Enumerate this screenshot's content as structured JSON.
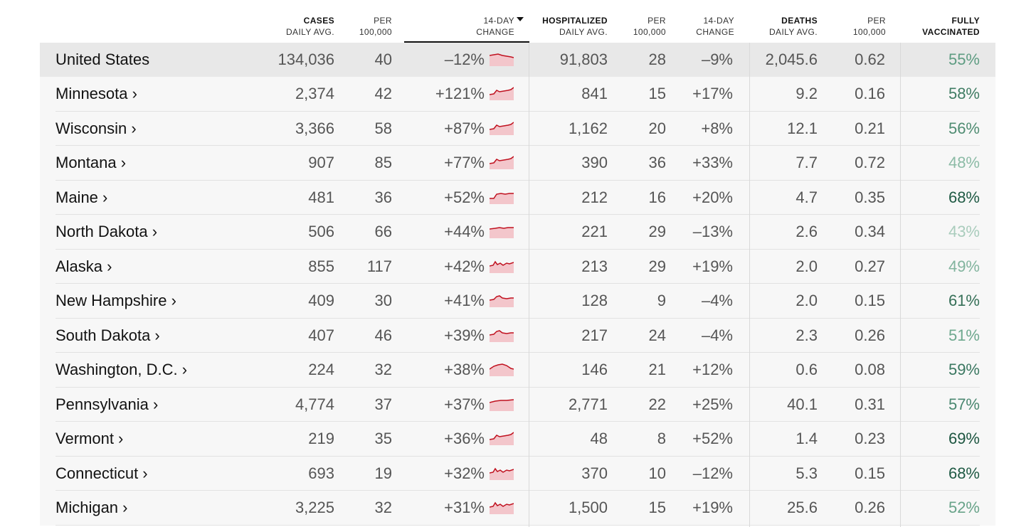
{
  "headers": {
    "cases": {
      "top": "CASES",
      "bottom": "DAILY AVG."
    },
    "cases_per": {
      "top": "PER",
      "bottom": "100,000"
    },
    "cases_change": {
      "top": "14-DAY",
      "bottom": "CHANGE"
    },
    "hosp": {
      "top": "HOSPITALIZED",
      "bottom": "DAILY AVG."
    },
    "hosp_per": {
      "top": "PER",
      "bottom": "100,000"
    },
    "hosp_change": {
      "top": "14-DAY",
      "bottom": "CHANGE"
    },
    "deaths": {
      "top": "DEATHS",
      "bottom": "DAILY AVG."
    },
    "deaths_per": {
      "top": "PER",
      "bottom": "100,000"
    },
    "vacc": {
      "top": "FULLY",
      "bottom": "VACCINATED"
    }
  },
  "colors": {
    "spark_fill": "#f3c6cb",
    "spark_line": "#c0111f"
  },
  "rows": [
    {
      "name": "United States",
      "cases": "134,036",
      "cases_per": "40",
      "cases_change": "–12%",
      "hosp": "91,803",
      "hosp_per": "28",
      "hosp_change": "–9%",
      "deaths": "2,045.6",
      "deaths_per": "0.62",
      "vacc": "55%",
      "vacc_color": "#5e9c82",
      "spark": "flat-down"
    },
    {
      "name": "Minnesota ›",
      "cases": "2,374",
      "cases_per": "42",
      "cases_change": "+121%",
      "hosp": "841",
      "hosp_per": "15",
      "hosp_change": "+17%",
      "deaths": "9.2",
      "deaths_per": "0.16",
      "vacc": "58%",
      "vacc_color": "#3f7c63",
      "spark": "rise"
    },
    {
      "name": "Wisconsin ›",
      "cases": "3,366",
      "cases_per": "58",
      "cases_change": "+87%",
      "hosp": "1,162",
      "hosp_per": "20",
      "hosp_change": "+8%",
      "deaths": "12.1",
      "deaths_per": "0.21",
      "vacc": "56%",
      "vacc_color": "#4f8c72",
      "spark": "rise"
    },
    {
      "name": "Montana ›",
      "cases": "907",
      "cases_per": "85",
      "cases_change": "+77%",
      "hosp": "390",
      "hosp_per": "36",
      "hosp_change": "+33%",
      "deaths": "7.7",
      "deaths_per": "0.72",
      "vacc": "48%",
      "vacc_color": "#8cbba6",
      "spark": "rise"
    },
    {
      "name": "Maine ›",
      "cases": "481",
      "cases_per": "36",
      "cases_change": "+52%",
      "hosp": "212",
      "hosp_per": "16",
      "hosp_change": "+20%",
      "deaths": "4.7",
      "deaths_per": "0.35",
      "vacc": "68%",
      "vacc_color": "#1f5a44",
      "spark": "step"
    },
    {
      "name": "North Dakota ›",
      "cases": "506",
      "cases_per": "66",
      "cases_change": "+44%",
      "hosp": "221",
      "hosp_per": "29",
      "hosp_change": "–13%",
      "deaths": "2.6",
      "deaths_per": "0.34",
      "vacc": "43%",
      "vacc_color": "#a9ccbc",
      "spark": "flat"
    },
    {
      "name": "Alaska ›",
      "cases": "855",
      "cases_per": "117",
      "cases_change": "+42%",
      "hosp": "213",
      "hosp_per": "29",
      "hosp_change": "+19%",
      "deaths": "2.0",
      "deaths_per": "0.27",
      "vacc": "49%",
      "vacc_color": "#82b49e",
      "spark": "jagged"
    },
    {
      "name": "New Hampshire ›",
      "cases": "409",
      "cases_per": "30",
      "cases_change": "+41%",
      "hosp": "128",
      "hosp_per": "9",
      "hosp_change": "–4%",
      "deaths": "2.0",
      "deaths_per": "0.15",
      "vacc": "61%",
      "vacc_color": "#356f57",
      "spark": "hump"
    },
    {
      "name": "South Dakota ›",
      "cases": "407",
      "cases_per": "46",
      "cases_change": "+39%",
      "hosp": "217",
      "hosp_per": "24",
      "hosp_change": "–4%",
      "deaths": "2.3",
      "deaths_per": "0.26",
      "vacc": "51%",
      "vacc_color": "#6ea88e",
      "spark": "hump"
    },
    {
      "name": "Washington, D.C. ›",
      "cases": "224",
      "cases_per": "32",
      "cases_change": "+38%",
      "hosp": "146",
      "hosp_per": "21",
      "hosp_change": "+12%",
      "deaths": "0.6",
      "deaths_per": "0.08",
      "vacc": "59%",
      "vacc_color": "#3a7760",
      "spark": "peak"
    },
    {
      "name": "Pennsylvania ›",
      "cases": "4,774",
      "cases_per": "37",
      "cases_change": "+37%",
      "hosp": "2,771",
      "hosp_per": "22",
      "hosp_change": "+25%",
      "deaths": "40.1",
      "deaths_per": "0.31",
      "vacc": "57%",
      "vacc_color": "#4a8770",
      "spark": "smooth"
    },
    {
      "name": "Vermont ›",
      "cases": "219",
      "cases_per": "35",
      "cases_change": "+36%",
      "hosp": "48",
      "hosp_per": "8",
      "hosp_change": "+52%",
      "deaths": "1.4",
      "deaths_per": "0.23",
      "vacc": "69%",
      "vacc_color": "#1c5540",
      "spark": "rise"
    },
    {
      "name": "Connecticut ›",
      "cases": "693",
      "cases_per": "19",
      "cases_change": "+32%",
      "hosp": "370",
      "hosp_per": "10",
      "hosp_change": "–12%",
      "deaths": "5.3",
      "deaths_per": "0.15",
      "vacc": "68%",
      "vacc_color": "#1f5a44",
      "spark": "jagged"
    },
    {
      "name": "Michigan ›",
      "cases": "3,225",
      "cases_per": "32",
      "cases_change": "+31%",
      "hosp": "1,500",
      "hosp_per": "15",
      "hosp_change": "+19%",
      "deaths": "25.6",
      "deaths_per": "0.26",
      "vacc": "52%",
      "vacc_color": "#68a389",
      "spark": "jagged"
    }
  ]
}
